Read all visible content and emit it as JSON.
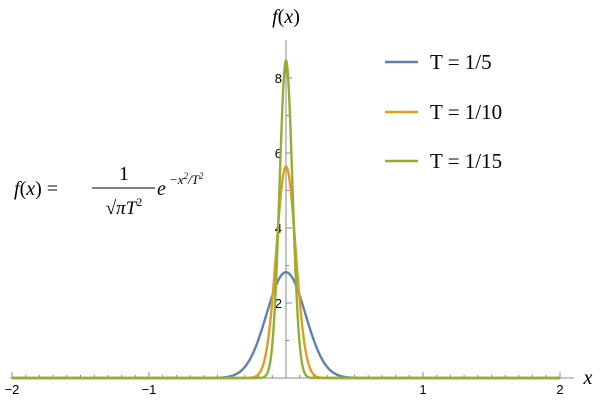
{
  "chart_data": {
    "type": "line",
    "xlabel": "x",
    "ylabel": "f(x)",
    "xlim": [
      -2,
      2
    ],
    "ylim": [
      0,
      8.9
    ],
    "x_ticks": [
      -2,
      -1,
      1,
      2
    ],
    "y_ticks": [
      2,
      4,
      6,
      8
    ],
    "x_tick_labels": [
      "−2",
      "−1",
      "1",
      "2"
    ],
    "y_tick_labels": [
      "2",
      "4",
      "6",
      "8"
    ],
    "formula": {
      "lhs": "f(x) =",
      "numerator": "1",
      "denominator": "√πT²",
      "exponent": "−x²/T²"
    },
    "legend_position": "top-right",
    "grid": false,
    "series": [
      {
        "name": "T = 1/5",
        "T": 0.2,
        "color": "#5E81B5",
        "peak": 2.82
      },
      {
        "name": "T = 1/10",
        "T": 0.1,
        "color": "#E19C24",
        "peak": 5.64
      },
      {
        "name": "T = 1/15",
        "T": 0.06667,
        "color": "#8FB032",
        "peak": 8.46
      }
    ]
  }
}
